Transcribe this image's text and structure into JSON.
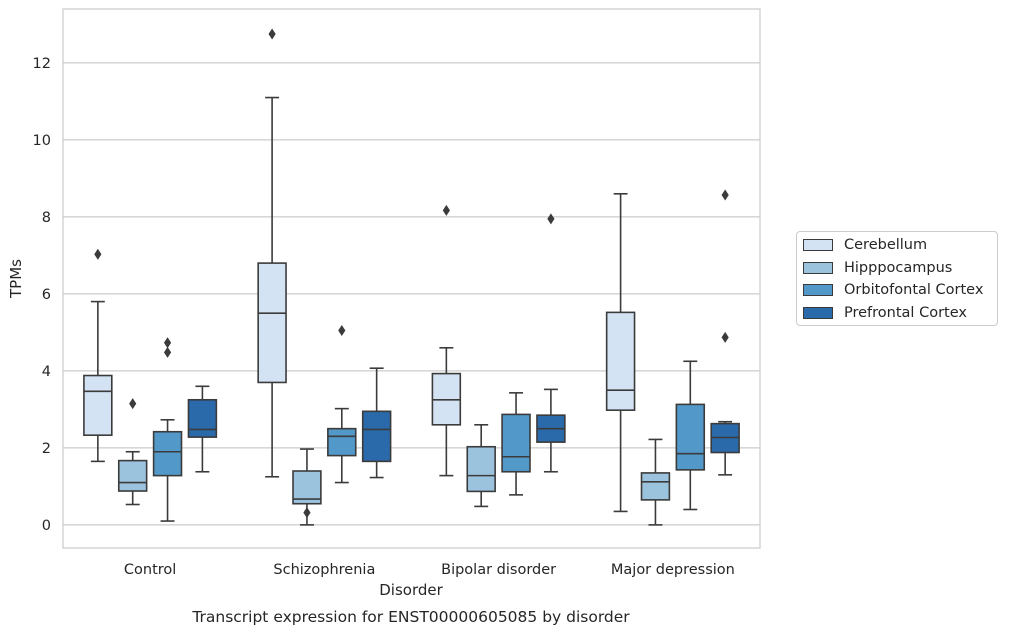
{
  "chart_data": {
    "type": "box",
    "title": "",
    "caption": "Transcript expression for ENST00000605085 by disorder",
    "xlabel": "Disorder",
    "ylabel": "TPMs",
    "ylim": [
      -0.6,
      13.4
    ],
    "yticks": [
      0,
      2,
      4,
      6,
      8,
      10,
      12
    ],
    "grid": "horizontal",
    "legend_position": "right",
    "categories": [
      "Control",
      "Schizophrenia",
      "Bipolar disorder",
      "Major depression"
    ],
    "series": [
      {
        "name": "Cerebellum",
        "color": "#d4e3f3",
        "boxes": [
          {
            "whislo": 1.65,
            "q1": 2.33,
            "med": 3.47,
            "q3": 3.88,
            "whishi": 5.8,
            "fliers": [
              7.03
            ]
          },
          {
            "whislo": 1.25,
            "q1": 3.7,
            "med": 5.5,
            "q3": 6.8,
            "whishi": 11.1,
            "fliers": [
              12.75
            ]
          },
          {
            "whislo": 1.28,
            "q1": 2.6,
            "med": 3.25,
            "q3": 3.93,
            "whishi": 4.6,
            "fliers": [
              8.17
            ]
          },
          {
            "whislo": 0.35,
            "q1": 2.98,
            "med": 3.5,
            "q3": 5.52,
            "whishi": 8.6,
            "fliers": []
          }
        ]
      },
      {
        "name": "Hipppocampus",
        "color": "#9cc3de",
        "boxes": [
          {
            "whislo": 0.53,
            "q1": 0.88,
            "med": 1.1,
            "q3": 1.67,
            "whishi": 1.9,
            "fliers": [
              3.15
            ]
          },
          {
            "whislo": 0.0,
            "q1": 0.55,
            "med": 0.67,
            "q3": 1.4,
            "whishi": 1.97,
            "fliers": [
              0.32
            ]
          },
          {
            "whislo": 0.48,
            "q1": 0.87,
            "med": 1.28,
            "q3": 2.03,
            "whishi": 2.6,
            "fliers": []
          },
          {
            "whislo": 0.0,
            "q1": 0.65,
            "med": 1.12,
            "q3": 1.35,
            "whishi": 2.22,
            "fliers": []
          }
        ]
      },
      {
        "name": "Orbitofontal Cortex",
        "color": "#5298c8",
        "boxes": [
          {
            "whislo": 0.1,
            "q1": 1.28,
            "med": 1.9,
            "q3": 2.42,
            "whishi": 2.73,
            "fliers": [
              4.48,
              4.73
            ]
          },
          {
            "whislo": 1.1,
            "q1": 1.8,
            "med": 2.3,
            "q3": 2.5,
            "whishi": 3.02,
            "fliers": [
              5.05
            ]
          },
          {
            "whislo": 0.78,
            "q1": 1.38,
            "med": 1.77,
            "q3": 2.87,
            "whishi": 3.43,
            "fliers": []
          },
          {
            "whislo": 0.4,
            "q1": 1.43,
            "med": 1.85,
            "q3": 3.13,
            "whishi": 4.25,
            "fliers": []
          }
        ]
      },
      {
        "name": "Prefrontal Cortex",
        "color": "#2b6aaa",
        "boxes": [
          {
            "whislo": 1.38,
            "q1": 2.28,
            "med": 2.48,
            "q3": 3.25,
            "whishi": 3.6,
            "fliers": []
          },
          {
            "whislo": 1.23,
            "q1": 1.65,
            "med": 2.48,
            "q3": 2.95,
            "whishi": 4.07,
            "fliers": []
          },
          {
            "whislo": 1.38,
            "q1": 2.15,
            "med": 2.5,
            "q3": 2.85,
            "whishi": 3.52,
            "fliers": [
              7.95
            ]
          },
          {
            "whislo": 1.3,
            "q1": 1.88,
            "med": 2.27,
            "q3": 2.63,
            "whishi": 2.68,
            "fliers": [
              4.87,
              8.57
            ]
          }
        ]
      }
    ]
  }
}
